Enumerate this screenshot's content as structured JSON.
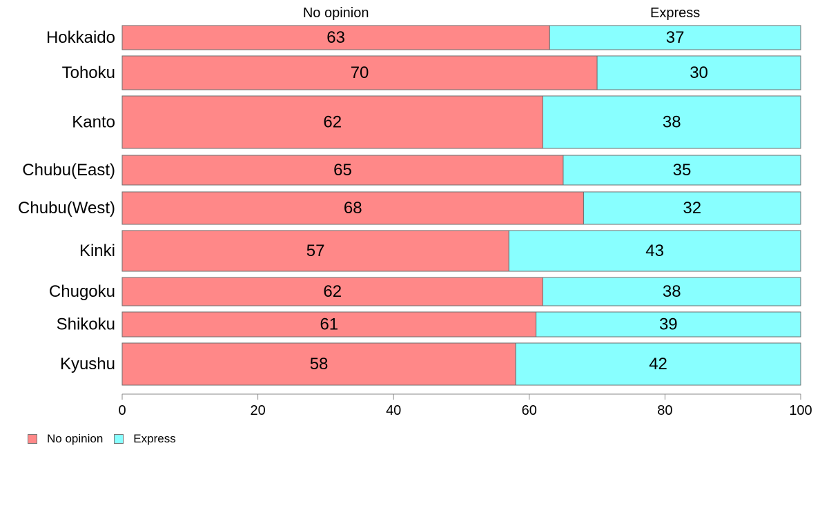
{
  "chart_data": {
    "type": "bar",
    "orientation": "horizontal",
    "stacked": true,
    "categories": [
      "Hokkaido",
      "Tohoku",
      "Kanto",
      "Chubu(East)",
      "Chubu(West)",
      "Kinki",
      "Chugoku",
      "Shikoku",
      "Kyushu"
    ],
    "series": [
      {
        "name": "No opinion",
        "color": "#ff8888",
        "values": [
          63,
          70,
          62,
          65,
          68,
          57,
          62,
          61,
          58
        ]
      },
      {
        "name": "Express",
        "color": "#88ffff",
        "values": [
          37,
          30,
          38,
          35,
          32,
          43,
          38,
          39,
          42
        ]
      }
    ],
    "top_labels": [
      "No opinion",
      "Express"
    ],
    "xlim": [
      0,
      100
    ],
    "xticks": [
      0,
      20,
      40,
      60,
      80,
      100
    ],
    "grid": false,
    "legend_position": "bottom-left",
    "variable_bar_heights": true
  },
  "legend": {
    "items": [
      {
        "label": "No opinion",
        "color": "#ff8888"
      },
      {
        "label": "Express",
        "color": "#88ffff"
      }
    ]
  }
}
